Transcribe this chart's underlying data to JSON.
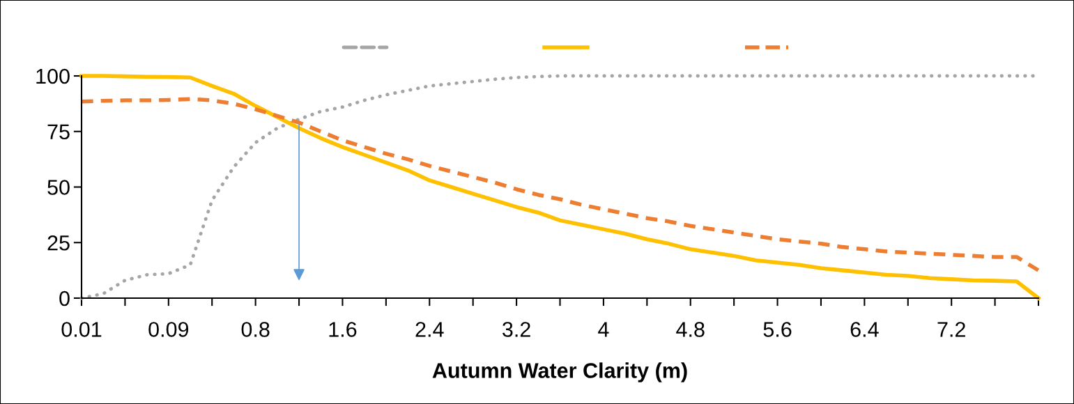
{
  "chart_data": {
    "type": "line",
    "xlabel": "Autumn Water Clarity (m)",
    "categories": [
      "0.01",
      null,
      null,
      null,
      "0.09",
      null,
      null,
      null,
      "0.8",
      null,
      null,
      null,
      "1.6",
      null,
      null,
      null,
      "2.4",
      null,
      null,
      null,
      "3.2",
      null,
      null,
      null,
      "4",
      null,
      null,
      null,
      "4.8",
      null,
      null,
      null,
      "5.6",
      null,
      null,
      null,
      "6.4",
      null,
      null,
      null,
      "7.2",
      null,
      null,
      null,
      null
    ],
    "series": [
      {
        "color": "#a5a5a5",
        "line_style": "dotted",
        "values": [
          0,
          2,
          8,
          10.5,
          11,
          15,
          44,
          59,
          70,
          76.5,
          80.5,
          84,
          86,
          89,
          91.5,
          93.5,
          95.5,
          96.5,
          97.5,
          98.5,
          99.3,
          99.7,
          100,
          100,
          100,
          100,
          100,
          100,
          100,
          100,
          100,
          100,
          100,
          100,
          100,
          100,
          100,
          100,
          100,
          100,
          100,
          100,
          100,
          100,
          100
        ]
      },
      {
        "color": "#ffc000",
        "line_style": "solid",
        "values": [
          100,
          100,
          99.8,
          99.6,
          99.5,
          99.3,
          95.5,
          92,
          86.5,
          81.5,
          76.5,
          72,
          68,
          64.5,
          61,
          57.5,
          53,
          50,
          47,
          44,
          41,
          38.5,
          35,
          33,
          31,
          29,
          26.5,
          24.5,
          22,
          20.5,
          19,
          17,
          16,
          15,
          13.5,
          12.5,
          11.5,
          10.5,
          10,
          9,
          8.5,
          8,
          7.8,
          7.5,
          0
        ]
      },
      {
        "color": "#ed7d31",
        "line_style": "dashed",
        "values": [
          88.5,
          88.8,
          89,
          89,
          89.2,
          89.6,
          89,
          87.5,
          85,
          82,
          79,
          75,
          71,
          68,
          65,
          62.5,
          59.5,
          57,
          54.5,
          52,
          49,
          46.5,
          44.5,
          42,
          40,
          38,
          36,
          34.5,
          32.5,
          31,
          29.5,
          28,
          26.5,
          25.5,
          24.5,
          23,
          22,
          21,
          20.5,
          20,
          19.5,
          19,
          18.5,
          18.5,
          12.5
        ]
      }
    ],
    "ylim": [
      0,
      100
    ],
    "yticks": [
      0,
      25,
      50,
      75,
      100
    ],
    "grid": false
  }
}
